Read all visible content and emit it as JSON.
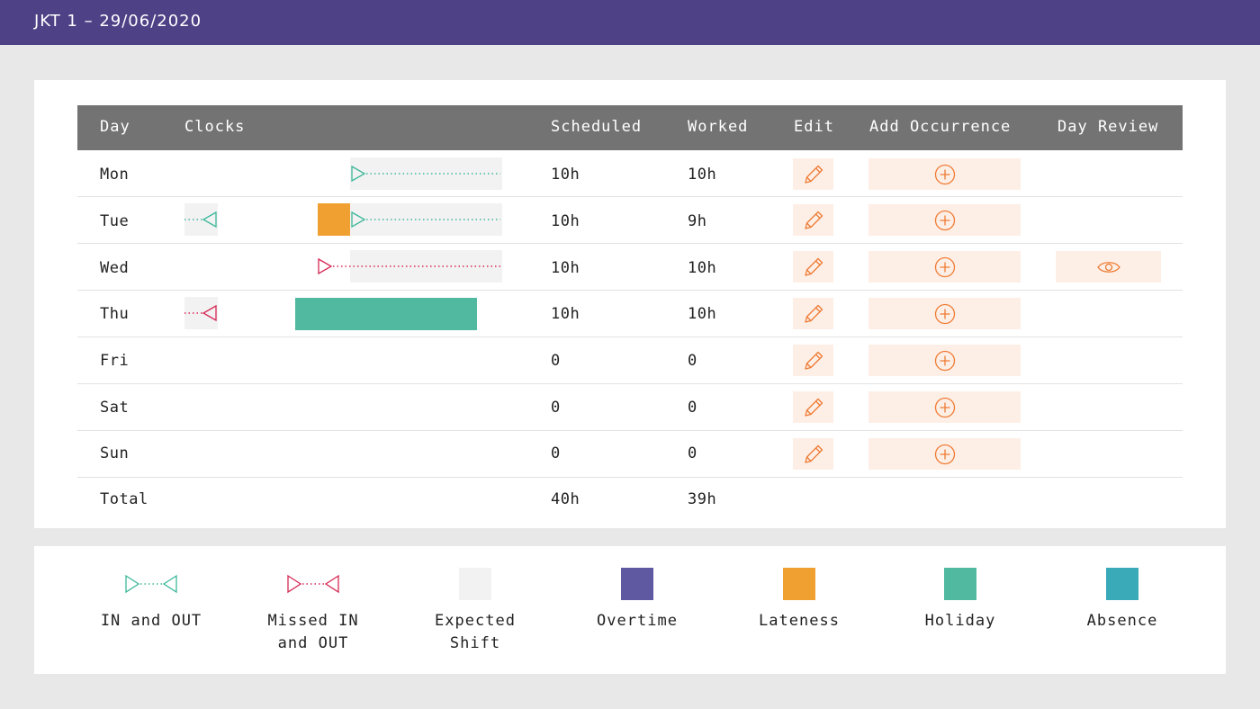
{
  "header": {
    "title": "JKT 1 – 29/06/2020"
  },
  "colors": {
    "brand": "#4e4186",
    "table_header": "#737373",
    "clock_ok": "#3cb89a",
    "clock_missed": "#d62855",
    "expected_shift": "#f2f2f2",
    "overtime": "#5e59a0",
    "lateness": "#f0a030",
    "holiday": "#50b9a0",
    "absence": "#3aa9b8",
    "action_bg": "#fdefe6",
    "action_icon": "#ef7a33"
  },
  "table": {
    "columns": {
      "day": "Day",
      "clocks": "Clocks",
      "scheduled": "Scheduled",
      "worked": "Worked",
      "edit": "Edit",
      "add_occurrence": "Add Occurrence",
      "day_review": "Day Review"
    },
    "rows": [
      {
        "day": "Mon",
        "scheduled": "10h",
        "worked": "10h",
        "clocks": "in and out",
        "day_review": false
      },
      {
        "day": "Tue",
        "scheduled": "10h",
        "worked": "9h",
        "clocks": "in and out, lateness",
        "day_review": false
      },
      {
        "day": "Wed",
        "scheduled": "10h",
        "worked": "10h",
        "clocks": "missed in and out",
        "day_review": true
      },
      {
        "day": "Thu",
        "scheduled": "10h",
        "worked": "10h",
        "clocks": "missed in and out, holiday",
        "day_review": false
      },
      {
        "day": "Fri",
        "scheduled": "0",
        "worked": "0",
        "clocks": "none",
        "day_review": false
      },
      {
        "day": "Sat",
        "scheduled": "0",
        "worked": "0",
        "clocks": "none",
        "day_review": false
      },
      {
        "day": "Sun",
        "scheduled": "0",
        "worked": "0",
        "clocks": "none",
        "day_review": false
      }
    ],
    "total": {
      "label": "Total",
      "scheduled": "40h",
      "worked": "39h"
    },
    "icons": {
      "edit": "pencil-icon",
      "add_occurrence": "plus-circle-icon",
      "day_review": "eye-icon"
    }
  },
  "legend": [
    {
      "label": "IN and OUT",
      "icon": "in-out-clock-icon"
    },
    {
      "label": "Missed IN and OUT",
      "icon": "missed-in-out-clock-icon"
    },
    {
      "label": "Expected Shift",
      "icon": "expected-shift-swatch"
    },
    {
      "label": "Overtime",
      "icon": "overtime-swatch"
    },
    {
      "label": "Lateness",
      "icon": "lateness-swatch"
    },
    {
      "label": "Holiday",
      "icon": "holiday-swatch"
    },
    {
      "label": "Absence",
      "icon": "absence-swatch"
    }
  ]
}
